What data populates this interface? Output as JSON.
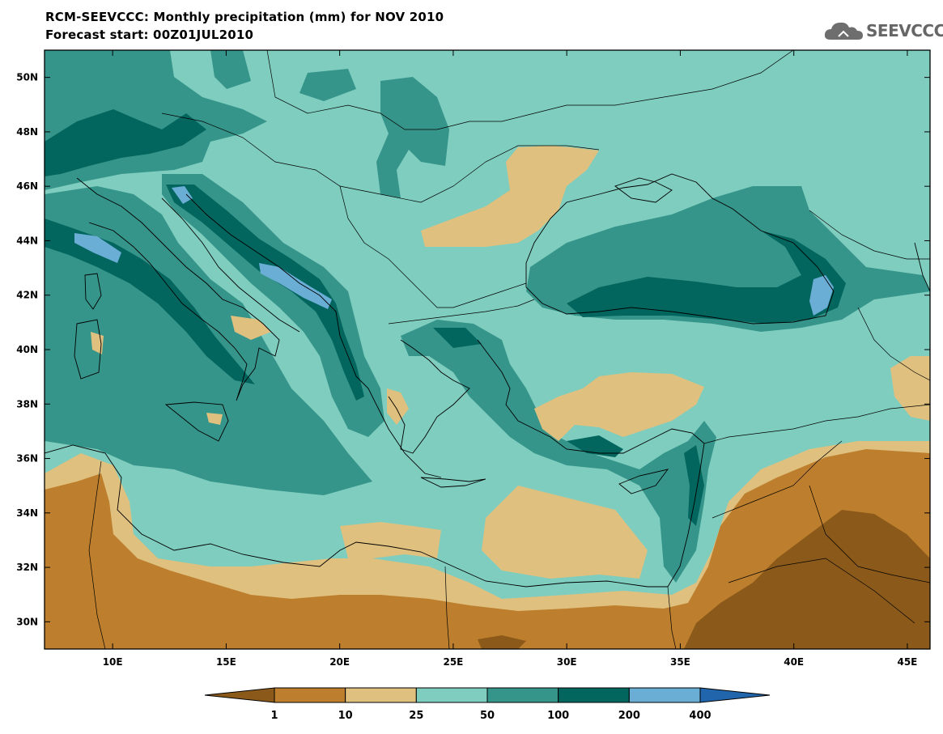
{
  "header": {
    "title": "RCM-SEEVCCC: Monthly precipitation (mm) for NOV 2010",
    "subtitle": "Forecast start: 00Z01JUL2010"
  },
  "logo": {
    "text": "SEEVCCC",
    "icon": "cloud-icon"
  },
  "map": {
    "lon_range": [
      7,
      46
    ],
    "lat_range": [
      29,
      51
    ],
    "lon_ticks": [
      {
        "value": 10,
        "label": "10E"
      },
      {
        "value": 15,
        "label": "15E"
      },
      {
        "value": 20,
        "label": "20E"
      },
      {
        "value": 25,
        "label": "25E"
      },
      {
        "value": 30,
        "label": "30E"
      },
      {
        "value": 35,
        "label": "35E"
      },
      {
        "value": 40,
        "label": "40E"
      },
      {
        "value": 45,
        "label": "45E"
      }
    ],
    "lat_ticks": [
      {
        "value": 30,
        "label": "30N"
      },
      {
        "value": 32,
        "label": "32N"
      },
      {
        "value": 34,
        "label": "34N"
      },
      {
        "value": 36,
        "label": "36N"
      },
      {
        "value": 38,
        "label": "38N"
      },
      {
        "value": 40,
        "label": "40N"
      },
      {
        "value": 42,
        "label": "42N"
      },
      {
        "value": 44,
        "label": "44N"
      },
      {
        "value": 46,
        "label": "46N"
      },
      {
        "value": 48,
        "label": "48N"
      },
      {
        "value": 50,
        "label": "50N"
      }
    ]
  },
  "colorbar": {
    "colors": [
      "#8b5a1a",
      "#bd7f2d",
      "#dfc07f",
      "#7fcdbf",
      "#36958a",
      "#02665e",
      "#6aaed6",
      "#2166ac"
    ],
    "labels": [
      "1",
      "10",
      "25",
      "50",
      "100",
      "200",
      "400"
    ]
  },
  "palette": {
    "dry_dark": "#8b5a1a",
    "dry": "#bd7f2d",
    "dry_light": "#dfc07f",
    "moderate": "#7fcdbf",
    "wet": "#36958a",
    "wet_dark": "#02665e",
    "very_wet": "#6aaed6"
  }
}
